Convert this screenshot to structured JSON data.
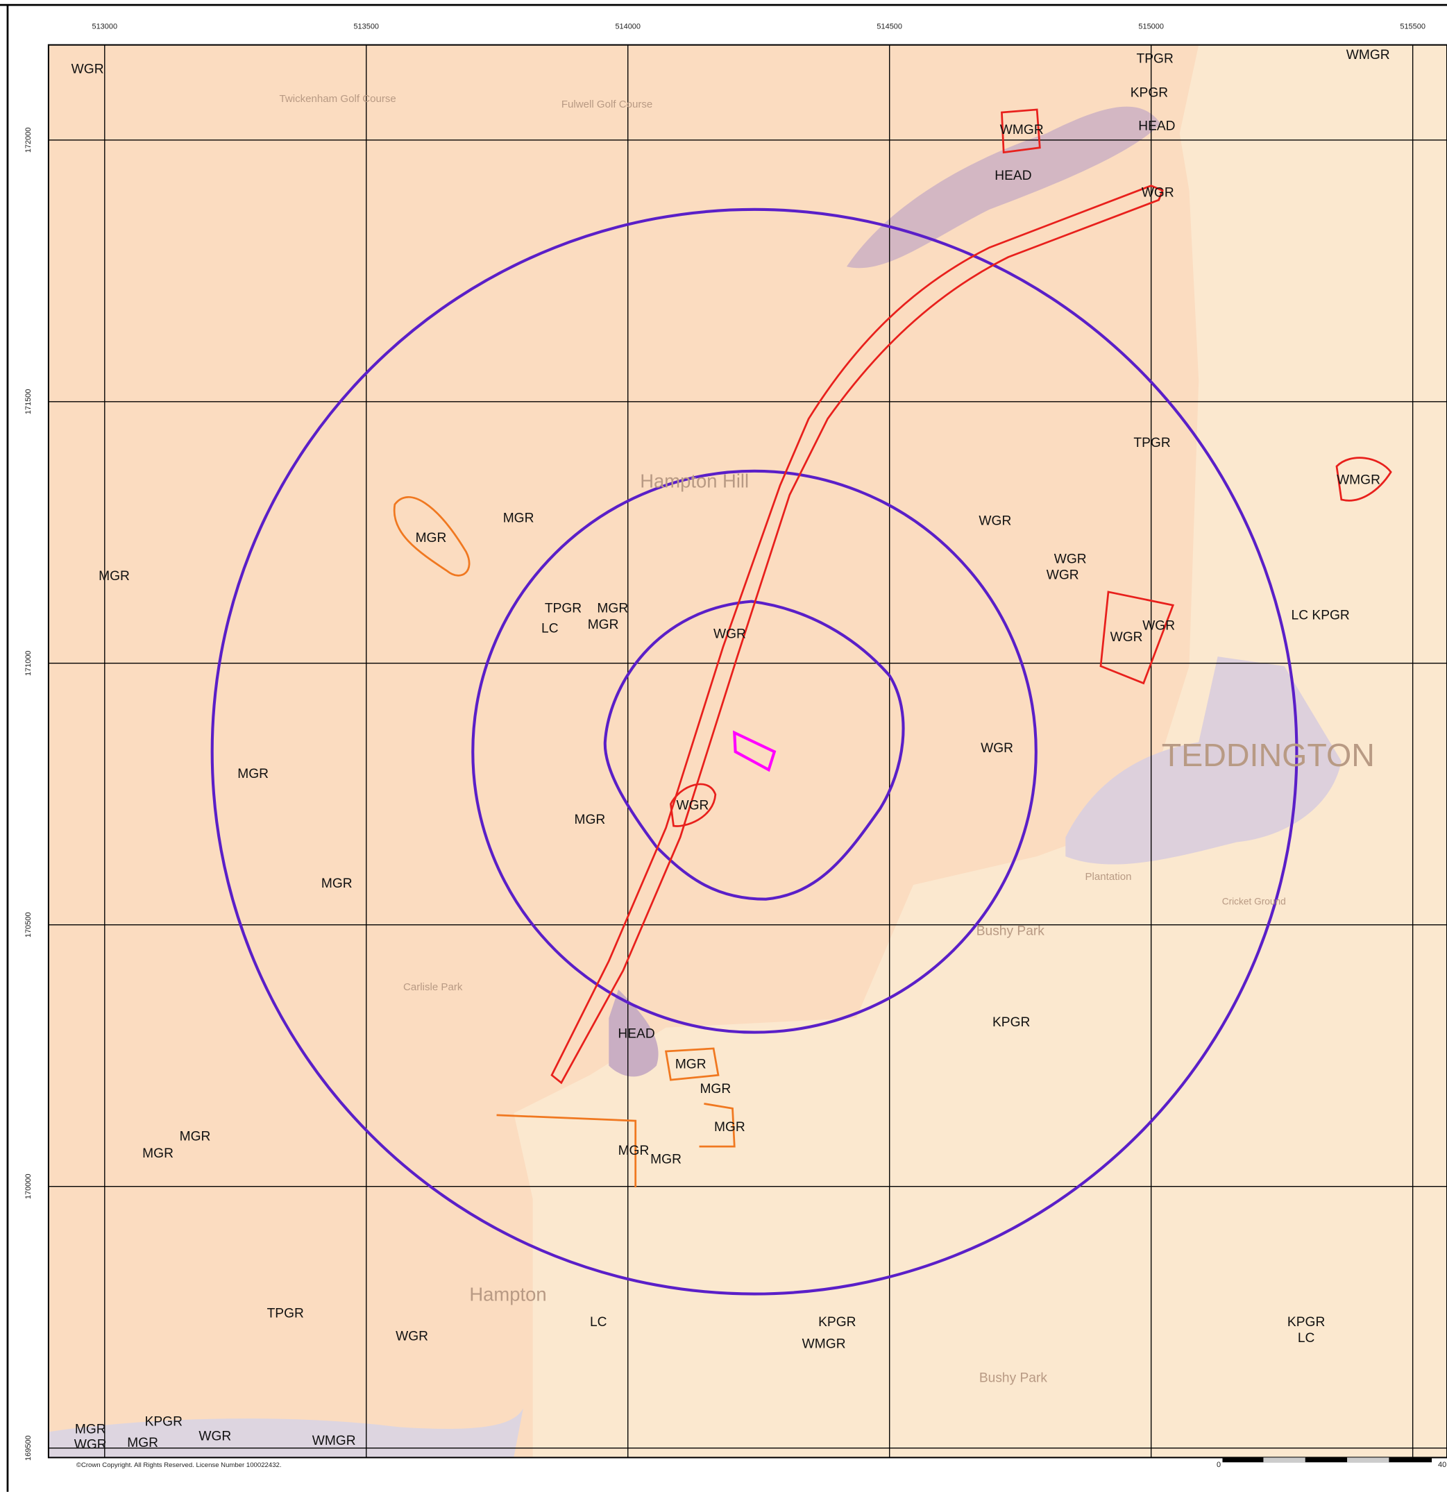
{
  "map": {
    "eastings": [
      "513000",
      "513500",
      "514000",
      "514500",
      "515000",
      "515500"
    ],
    "northings": [
      "172000",
      "171500",
      "171000",
      "170500",
      "170000",
      "169500"
    ],
    "geology_labels": [
      "WGR",
      "TPGR",
      "WMGR",
      "KPGR",
      "HEAD",
      "WMGR",
      "HEAD",
      "WGR",
      "TPGR",
      "WMGR",
      "MGR",
      "MGR",
      "WGR",
      "WGR",
      "WGR",
      "MGR",
      "TPGR",
      "MGR",
      "LC",
      "MGR",
      "WGR",
      "WGR",
      "WGR",
      "LC KPGR",
      "MGR",
      "WGR",
      "WGR",
      "MGR",
      "MGR",
      "KPGR",
      "HEAD",
      "MGR",
      "MGR",
      "MGR",
      "MGR",
      "MGR",
      "MGR",
      "MGR",
      "TPGR",
      "LC",
      "KPGR",
      "WMGR",
      "WGR",
      "KPGR",
      "LC",
      "MGR",
      "KPGR",
      "WGR",
      "MGR",
      "WGR",
      "WMGR"
    ],
    "place_names": [
      "Twickenham Golf Course",
      "Fulwell Golf Course",
      "Hampton Hill",
      "TEDDINGTON",
      "Hampton",
      "Bushy Park",
      "Bushy Park",
      "Carlisle Park",
      "Plantation",
      "Cricket Ground"
    ],
    "copyright": "©Crown Copyright. All Rights Reserved. License Number 100022432.",
    "scale_labels": [
      "0",
      "40"
    ]
  }
}
